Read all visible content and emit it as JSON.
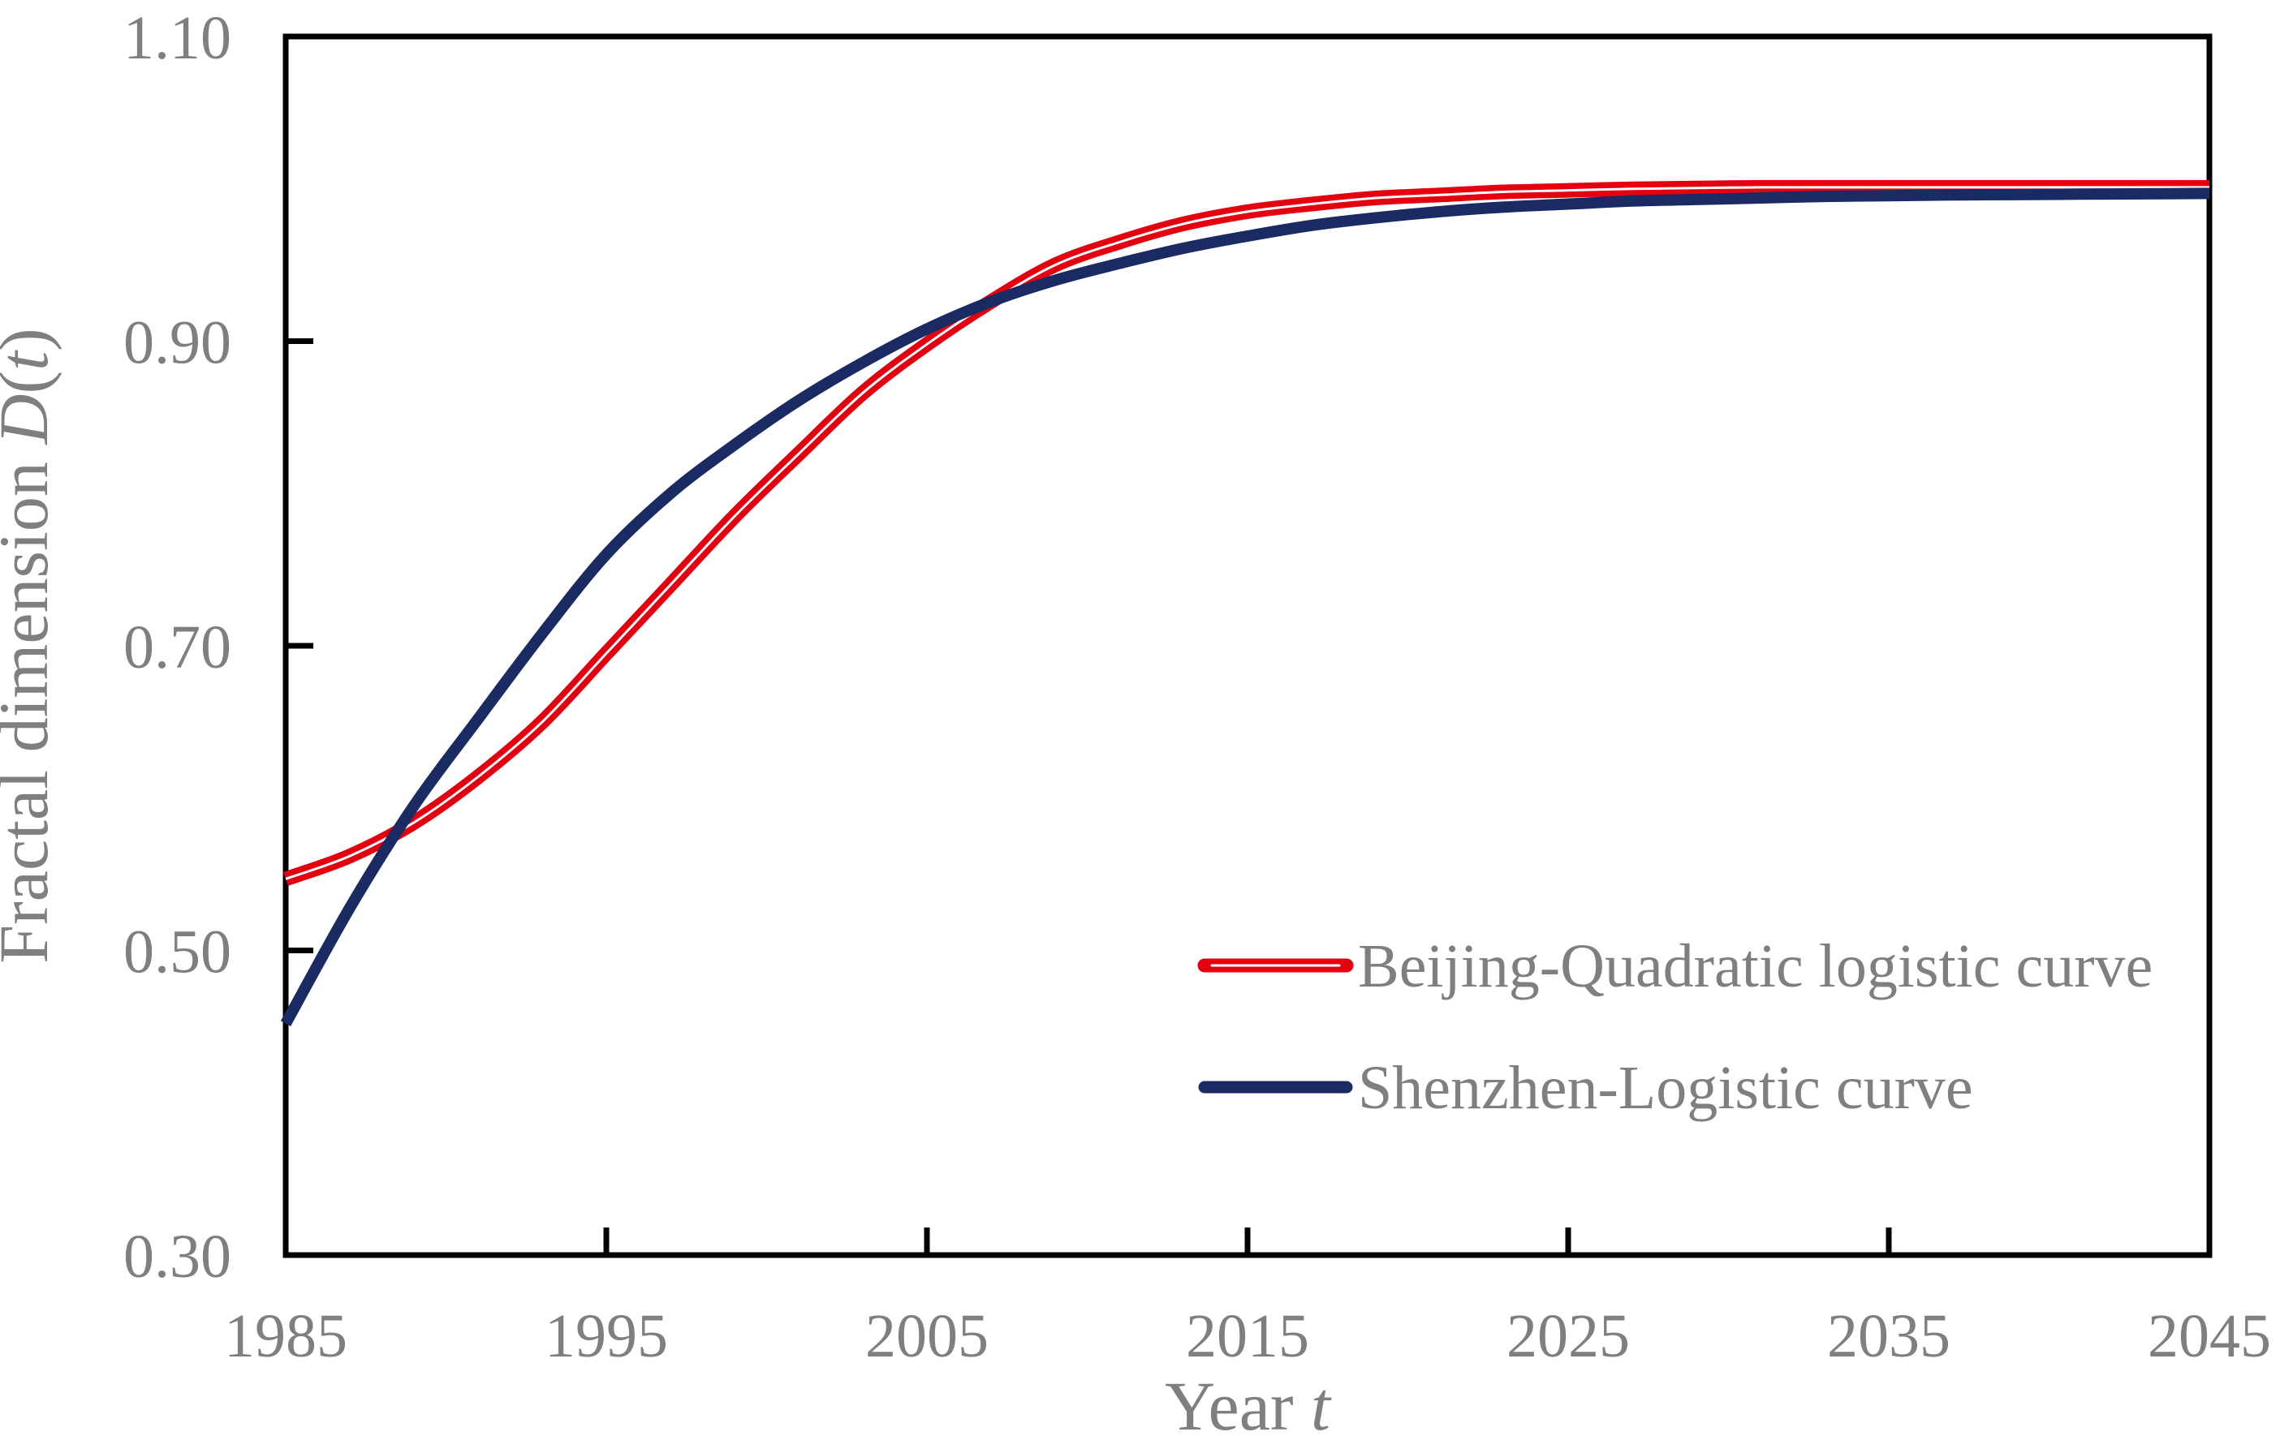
{
  "background": "#FFFFFF",
  "axis_color": "#000000",
  "text_color": "#7F7F7F",
  "chart_data": {
    "type": "line",
    "title": "",
    "xlabel": "Year t",
    "xlabel_parts": [
      {
        "t": "Year ",
        "i": false
      },
      {
        "t": "t",
        "i": true
      }
    ],
    "ylabel": "Fractal dimension D(t)",
    "ylabel_parts": [
      {
        "t": "Fractal dimension ",
        "i": false
      },
      {
        "t": "D",
        "i": true
      },
      {
        "t": "(",
        "i": false
      },
      {
        "t": "t",
        "i": true
      },
      {
        "t": ")",
        "i": false
      }
    ],
    "xlim": [
      1985,
      2045
    ],
    "ylim": [
      0.3,
      1.1
    ],
    "grid": false,
    "legend_position": "inside-bottom-right",
    "x_tick_values": [
      1985,
      1995,
      2005,
      2015,
      2025,
      2035,
      2045
    ],
    "x_tick_labels": [
      "1985",
      "1995",
      "2005",
      "2015",
      "2025",
      "2035",
      "2045"
    ],
    "x_inner_tick_values": [
      1995,
      2005,
      2015,
      2025,
      2035
    ],
    "y_tick_values": [
      0.3,
      0.5,
      0.7,
      0.9,
      1.1
    ],
    "y_tick_labels": [
      "0.30",
      "0.50",
      "0.70",
      "0.90",
      "1.10"
    ],
    "y_inner_tick_values": [
      0.5,
      0.7,
      0.9
    ],
    "x": [
      1985,
      1987,
      1989,
      1991,
      1993,
      1995,
      1997,
      1999,
      2001,
      2003,
      2005,
      2007,
      2009,
      2011,
      2013,
      2015,
      2017,
      2019,
      2021,
      2023,
      2025,
      2027,
      2029,
      2031,
      2033,
      2035,
      2037,
      2039,
      2041,
      2043,
      2045
    ],
    "series": [
      {
        "name": "Beijing-Quadratic logistic curve",
        "color": "#E4000F",
        "line_style": "double",
        "line_width": 18,
        "values": [
          0.547,
          0.562,
          0.584,
          0.614,
          0.65,
          0.695,
          0.74,
          0.785,
          0.826,
          0.866,
          0.898,
          0.926,
          0.95,
          0.965,
          0.977,
          0.985,
          0.99,
          0.994,
          0.996,
          0.998,
          0.999,
          1.0,
          1.0005,
          1.001,
          1.001,
          1.001,
          1.001,
          1.001,
          1.001,
          1.001,
          1.001
        ]
      },
      {
        "name": "Shenzhen-Logistic curve",
        "color": "#1A2A62",
        "line_style": "solid",
        "line_width": 14,
        "values": [
          0.452,
          0.528,
          0.595,
          0.652,
          0.708,
          0.76,
          0.8,
          0.832,
          0.861,
          0.886,
          0.908,
          0.926,
          0.94,
          0.951,
          0.961,
          0.969,
          0.976,
          0.981,
          0.985,
          0.988,
          0.99,
          0.992,
          0.993,
          0.994,
          0.995,
          0.9955,
          0.996,
          0.9962,
          0.9965,
          0.9967,
          0.997
        ]
      }
    ]
  },
  "legend": {
    "items": [
      {
        "label": "Beijing-Quadratic logistic curve",
        "color": "#E4000F",
        "style": "double"
      },
      {
        "label": "Shenzhen-Logistic curve",
        "color": "#1A2A62",
        "style": "solid"
      }
    ]
  }
}
